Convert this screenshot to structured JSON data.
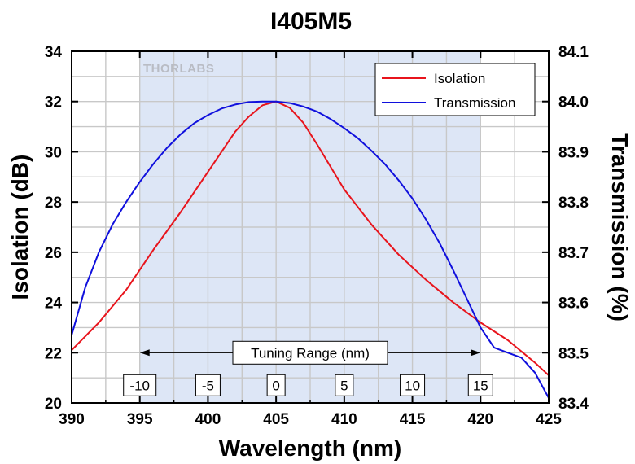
{
  "chart_data": {
    "type": "line",
    "title": "I405M5",
    "xlabel": "Wavelength (nm)",
    "ylabel": "Isolation (dB)",
    "y2label": "Transmission (%)",
    "xlim": [
      390,
      425
    ],
    "ylim": [
      20,
      34
    ],
    "y2lim": [
      83.4,
      84.1
    ],
    "xticks": [
      "390",
      "395",
      "400",
      "405",
      "410",
      "415",
      "420",
      "425"
    ],
    "yticks": [
      "20",
      "22",
      "24",
      "26",
      "28",
      "30",
      "32",
      "34"
    ],
    "y2ticks": [
      "83.4",
      "83.5",
      "83.6",
      "83.7",
      "83.8",
      "83.9",
      "84.0",
      "84.1"
    ],
    "grid": true,
    "legend_position": "top-right",
    "logo_text": "THORLABS",
    "shaded_region": {
      "x_start": 395,
      "x_end": 420,
      "color": "#dde6f6"
    },
    "tuning_range": {
      "label": "Tuning Range (nm)",
      "x_start": 395,
      "x_end": 420,
      "y": 22,
      "markers": [
        {
          "x": 395,
          "label": "-10"
        },
        {
          "x": 400,
          "label": "-5"
        },
        {
          "x": 405,
          "label": "0"
        },
        {
          "x": 410,
          "label": "5"
        },
        {
          "x": 415,
          "label": "10"
        },
        {
          "x": 420,
          "label": "15"
        }
      ]
    },
    "series": [
      {
        "name": "Isolation",
        "axis": "left",
        "color": "#e8141c",
        "x": [
          390,
          392,
          394,
          395,
          396,
          398,
          400,
          401,
          402,
          403,
          404,
          405,
          406,
          407,
          408,
          410,
          412,
          414,
          416,
          418,
          420,
          422,
          424,
          425
        ],
        "y": [
          22.1,
          23.2,
          24.5,
          25.3,
          26.1,
          27.6,
          29.2,
          30.0,
          30.8,
          31.4,
          31.85,
          32.0,
          31.75,
          31.15,
          30.3,
          28.5,
          27.1,
          25.9,
          24.9,
          24.0,
          23.2,
          22.5,
          21.6,
          21.1
        ]
      },
      {
        "name": "Transmission",
        "axis": "right",
        "color": "#1010dd",
        "x": [
          390,
          391,
          392,
          393,
          394,
          395,
          396,
          397,
          398,
          399,
          400,
          401,
          402,
          403,
          404,
          405,
          406,
          407,
          408,
          409,
          410,
          411,
          412,
          413,
          414,
          415,
          416,
          417,
          418,
          419,
          420,
          421,
          422,
          423,
          424,
          425
        ],
        "y": [
          83.535,
          83.63,
          83.7,
          83.755,
          83.8,
          83.84,
          83.876,
          83.908,
          83.935,
          83.957,
          83.973,
          83.986,
          83.994,
          83.999,
          84.0,
          84.0,
          83.997,
          83.99,
          83.98,
          83.965,
          83.947,
          83.927,
          83.902,
          83.875,
          83.843,
          83.807,
          83.765,
          83.718,
          83.664,
          83.607,
          83.55,
          83.51,
          83.5,
          83.49,
          83.46,
          83.41
        ]
      }
    ]
  }
}
